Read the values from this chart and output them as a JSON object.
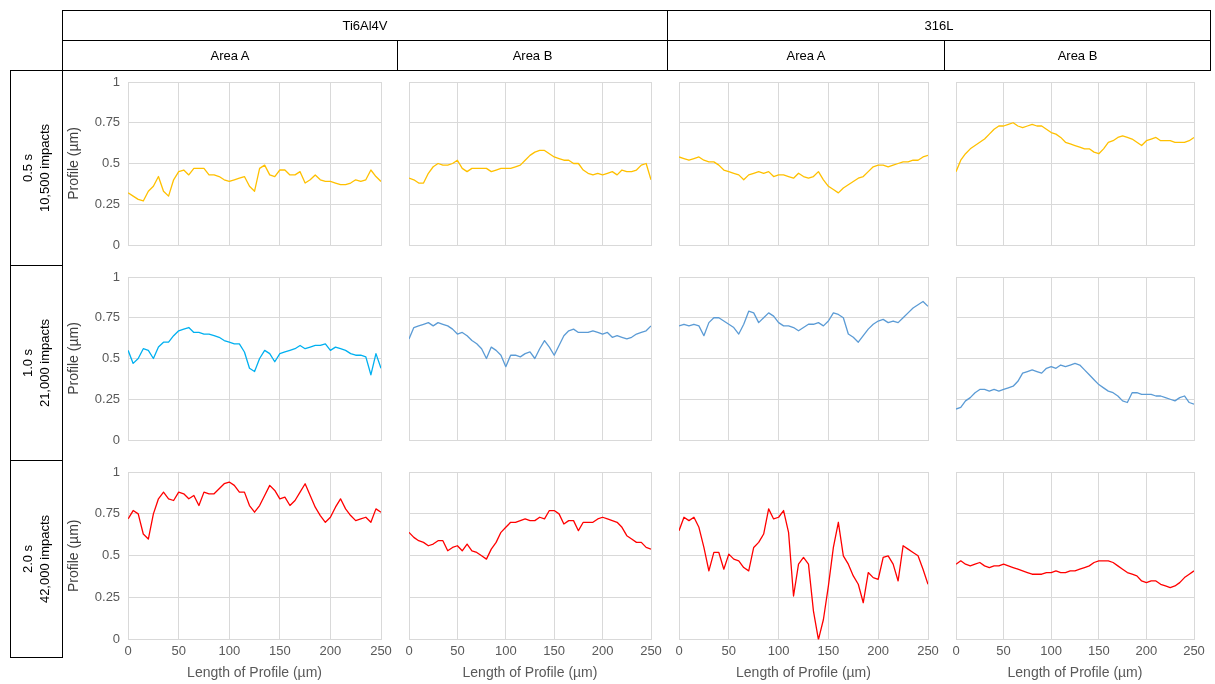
{
  "chart_data": [
    {
      "type": "other",
      "annotations": [
        "Ti6Al4V",
        "316L",
        "Area A",
        "Area B",
        "Area A",
        "Area B",
        "0.5 s",
        "10,500 impacts",
        "1.0 s",
        "21,000 impacts",
        "2.0 s",
        "42,000 impacts"
      ]
    },
    {
      "type": "line",
      "ylabel": "Profile (µm)",
      "tick_labels": "y",
      "grid": true,
      "color": "#ffc000",
      "xlim": [
        0,
        250
      ],
      "ylim": [
        0,
        1
      ],
      "xticks": [
        0,
        50,
        100,
        150,
        200,
        250
      ],
      "yticks": [
        0,
        0.25,
        0.5,
        0.75,
        1
      ],
      "x": [
        0,
        5,
        10,
        15,
        20,
        25,
        30,
        35,
        40,
        45,
        50,
        55,
        60,
        65,
        70,
        75,
        80,
        85,
        90,
        95,
        100,
        105,
        110,
        115,
        120,
        125,
        130,
        135,
        140,
        145,
        150,
        155,
        160,
        165,
        170,
        175,
        180,
        185,
        190,
        195,
        200,
        205,
        210,
        215,
        220,
        225,
        230,
        235,
        240,
        245,
        250
      ],
      "values": [
        0.32,
        0.3,
        0.28,
        0.27,
        0.33,
        0.36,
        0.42,
        0.33,
        0.3,
        0.4,
        0.45,
        0.46,
        0.43,
        0.47,
        0.47,
        0.47,
        0.43,
        0.43,
        0.42,
        0.4,
        0.39,
        0.4,
        0.41,
        0.42,
        0.36,
        0.33,
        0.47,
        0.49,
        0.43,
        0.42,
        0.46,
        0.46,
        0.43,
        0.43,
        0.45,
        0.38,
        0.4,
        0.43,
        0.4,
        0.39,
        0.39,
        0.38,
        0.37,
        0.37,
        0.38,
        0.4,
        0.39,
        0.4,
        0.46,
        0.42,
        0.39
      ]
    },
    {
      "type": "line",
      "tick_labels": false,
      "grid": true,
      "color": "#ffc000",
      "xlim": [
        0,
        250
      ],
      "ylim": [
        0,
        1
      ],
      "xticks": [
        0,
        50,
        100,
        150,
        200,
        250
      ],
      "yticks": [
        0,
        0.25,
        0.5,
        0.75,
        1
      ],
      "x": [
        0,
        5,
        10,
        15,
        20,
        25,
        30,
        35,
        40,
        45,
        50,
        55,
        60,
        65,
        70,
        75,
        80,
        85,
        90,
        95,
        100,
        105,
        110,
        115,
        120,
        125,
        130,
        135,
        140,
        145,
        150,
        155,
        160,
        165,
        170,
        175,
        180,
        185,
        190,
        195,
        200,
        205,
        210,
        215,
        220,
        225,
        230,
        235,
        240,
        245,
        250
      ],
      "values": [
        0.41,
        0.4,
        0.38,
        0.38,
        0.44,
        0.48,
        0.5,
        0.49,
        0.49,
        0.5,
        0.52,
        0.47,
        0.45,
        0.47,
        0.47,
        0.47,
        0.47,
        0.45,
        0.46,
        0.47,
        0.47,
        0.47,
        0.48,
        0.49,
        0.52,
        0.55,
        0.57,
        0.58,
        0.58,
        0.56,
        0.54,
        0.53,
        0.52,
        0.52,
        0.5,
        0.5,
        0.46,
        0.44,
        0.43,
        0.44,
        0.43,
        0.44,
        0.45,
        0.43,
        0.46,
        0.45,
        0.45,
        0.46,
        0.49,
        0.5,
        0.4
      ]
    },
    {
      "type": "line",
      "tick_labels": false,
      "grid": true,
      "color": "#ffc000",
      "xlim": [
        0,
        250
      ],
      "ylim": [
        0,
        1
      ],
      "xticks": [
        0,
        50,
        100,
        150,
        200,
        250
      ],
      "yticks": [
        0,
        0.25,
        0.5,
        0.75,
        1
      ],
      "x": [
        0,
        5,
        10,
        15,
        20,
        25,
        30,
        35,
        40,
        45,
        50,
        55,
        60,
        65,
        70,
        75,
        80,
        85,
        90,
        95,
        100,
        105,
        110,
        115,
        120,
        125,
        130,
        135,
        140,
        145,
        150,
        155,
        160,
        165,
        170,
        175,
        180,
        185,
        190,
        195,
        200,
        205,
        210,
        215,
        220,
        225,
        230,
        235,
        240,
        245,
        250
      ],
      "values": [
        0.54,
        0.53,
        0.52,
        0.53,
        0.54,
        0.52,
        0.51,
        0.51,
        0.49,
        0.46,
        0.45,
        0.44,
        0.43,
        0.4,
        0.43,
        0.44,
        0.45,
        0.44,
        0.45,
        0.42,
        0.43,
        0.43,
        0.42,
        0.41,
        0.44,
        0.42,
        0.41,
        0.42,
        0.45,
        0.4,
        0.36,
        0.34,
        0.32,
        0.35,
        0.37,
        0.39,
        0.41,
        0.42,
        0.45,
        0.48,
        0.49,
        0.49,
        0.48,
        0.49,
        0.5,
        0.51,
        0.51,
        0.52,
        0.52,
        0.54,
        0.55
      ]
    },
    {
      "type": "line",
      "tick_labels": false,
      "grid": true,
      "color": "#ffc000",
      "xlim": [
        0,
        250
      ],
      "ylim": [
        0,
        1
      ],
      "xticks": [
        0,
        50,
        100,
        150,
        200,
        250
      ],
      "yticks": [
        0,
        0.25,
        0.5,
        0.75,
        1
      ],
      "x": [
        0,
        5,
        10,
        15,
        20,
        25,
        30,
        35,
        40,
        45,
        50,
        55,
        60,
        65,
        70,
        75,
        80,
        85,
        90,
        95,
        100,
        105,
        110,
        115,
        120,
        125,
        130,
        135,
        140,
        145,
        150,
        155,
        160,
        165,
        170,
        175,
        180,
        185,
        190,
        195,
        200,
        205,
        210,
        215,
        220,
        225,
        230,
        235,
        240,
        245,
        250
      ],
      "values": [
        0.45,
        0.52,
        0.56,
        0.59,
        0.61,
        0.63,
        0.65,
        0.68,
        0.71,
        0.73,
        0.73,
        0.74,
        0.75,
        0.73,
        0.72,
        0.73,
        0.74,
        0.73,
        0.73,
        0.71,
        0.69,
        0.68,
        0.66,
        0.63,
        0.62,
        0.61,
        0.6,
        0.59,
        0.59,
        0.57,
        0.56,
        0.59,
        0.63,
        0.64,
        0.66,
        0.67,
        0.66,
        0.65,
        0.63,
        0.61,
        0.64,
        0.65,
        0.66,
        0.64,
        0.64,
        0.64,
        0.63,
        0.63,
        0.63,
        0.64,
        0.66
      ]
    },
    {
      "type": "line",
      "ylabel": "Profile (µm)",
      "tick_labels": "y",
      "grid": true,
      "color": "#00b0f0",
      "xlim": [
        0,
        250
      ],
      "ylim": [
        0,
        1
      ],
      "xticks": [
        0,
        50,
        100,
        150,
        200,
        250
      ],
      "yticks": [
        0,
        0.25,
        0.5,
        0.75,
        1
      ],
      "x": [
        0,
        5,
        10,
        15,
        20,
        25,
        30,
        35,
        40,
        45,
        50,
        55,
        60,
        65,
        70,
        75,
        80,
        85,
        90,
        95,
        100,
        105,
        110,
        115,
        120,
        125,
        130,
        135,
        140,
        145,
        150,
        155,
        160,
        165,
        170,
        175,
        180,
        185,
        190,
        195,
        200,
        205,
        210,
        215,
        220,
        225,
        230,
        235,
        240,
        245,
        250
      ],
      "values": [
        0.55,
        0.47,
        0.5,
        0.56,
        0.55,
        0.5,
        0.57,
        0.6,
        0.6,
        0.64,
        0.67,
        0.68,
        0.69,
        0.66,
        0.66,
        0.65,
        0.65,
        0.64,
        0.63,
        0.61,
        0.6,
        0.59,
        0.59,
        0.54,
        0.44,
        0.42,
        0.5,
        0.55,
        0.53,
        0.48,
        0.53,
        0.54,
        0.55,
        0.56,
        0.58,
        0.56,
        0.57,
        0.58,
        0.58,
        0.59,
        0.55,
        0.57,
        0.56,
        0.55,
        0.53,
        0.52,
        0.52,
        0.51,
        0.4,
        0.53,
        0.44
      ]
    },
    {
      "type": "line",
      "tick_labels": false,
      "grid": true,
      "color": "#5b9bd5",
      "xlim": [
        0,
        250
      ],
      "ylim": [
        0,
        1
      ],
      "xticks": [
        0,
        50,
        100,
        150,
        200,
        250
      ],
      "yticks": [
        0,
        0.25,
        0.5,
        0.75,
        1
      ],
      "x": [
        0,
        5,
        10,
        15,
        20,
        25,
        30,
        35,
        40,
        45,
        50,
        55,
        60,
        65,
        70,
        75,
        80,
        85,
        90,
        95,
        100,
        105,
        110,
        115,
        120,
        125,
        130,
        135,
        140,
        145,
        150,
        155,
        160,
        165,
        170,
        175,
        180,
        185,
        190,
        195,
        200,
        205,
        210,
        215,
        220,
        225,
        230,
        235,
        240,
        245,
        250
      ],
      "values": [
        0.62,
        0.69,
        0.7,
        0.71,
        0.72,
        0.7,
        0.72,
        0.71,
        0.7,
        0.68,
        0.65,
        0.66,
        0.64,
        0.61,
        0.59,
        0.56,
        0.5,
        0.57,
        0.55,
        0.52,
        0.45,
        0.52,
        0.52,
        0.51,
        0.53,
        0.54,
        0.5,
        0.56,
        0.61,
        0.57,
        0.52,
        0.58,
        0.64,
        0.67,
        0.68,
        0.66,
        0.66,
        0.66,
        0.67,
        0.66,
        0.65,
        0.66,
        0.63,
        0.64,
        0.63,
        0.62,
        0.63,
        0.65,
        0.66,
        0.67,
        0.7
      ]
    },
    {
      "type": "line",
      "tick_labels": false,
      "grid": true,
      "color": "#5b9bd5",
      "xlim": [
        0,
        250
      ],
      "ylim": [
        0,
        1
      ],
      "xticks": [
        0,
        50,
        100,
        150,
        200,
        250
      ],
      "yticks": [
        0,
        0.25,
        0.5,
        0.75,
        1
      ],
      "x": [
        0,
        5,
        10,
        15,
        20,
        25,
        30,
        35,
        40,
        45,
        50,
        55,
        60,
        65,
        70,
        75,
        80,
        85,
        90,
        95,
        100,
        105,
        110,
        115,
        120,
        125,
        130,
        135,
        140,
        145,
        150,
        155,
        160,
        165,
        170,
        175,
        180,
        185,
        190,
        195,
        200,
        205,
        210,
        215,
        220,
        225,
        230,
        235,
        240,
        245,
        250
      ],
      "values": [
        0.7,
        0.71,
        0.7,
        0.71,
        0.7,
        0.64,
        0.72,
        0.75,
        0.75,
        0.73,
        0.71,
        0.69,
        0.65,
        0.71,
        0.79,
        0.78,
        0.72,
        0.75,
        0.78,
        0.76,
        0.72,
        0.7,
        0.7,
        0.69,
        0.67,
        0.69,
        0.71,
        0.71,
        0.72,
        0.7,
        0.73,
        0.78,
        0.77,
        0.75,
        0.65,
        0.63,
        0.6,
        0.64,
        0.68,
        0.71,
        0.73,
        0.74,
        0.72,
        0.73,
        0.72,
        0.75,
        0.78,
        0.81,
        0.83,
        0.85,
        0.82
      ]
    },
    {
      "type": "line",
      "tick_labels": false,
      "grid": true,
      "color": "#5b9bd5",
      "xlim": [
        0,
        250
      ],
      "ylim": [
        0,
        1
      ],
      "xticks": [
        0,
        50,
        100,
        150,
        200,
        250
      ],
      "yticks": [
        0,
        0.25,
        0.5,
        0.75,
        1
      ],
      "x": [
        0,
        5,
        10,
        15,
        20,
        25,
        30,
        35,
        40,
        45,
        50,
        55,
        60,
        65,
        70,
        75,
        80,
        85,
        90,
        95,
        100,
        105,
        110,
        115,
        120,
        125,
        130,
        135,
        140,
        145,
        150,
        155,
        160,
        165,
        170,
        175,
        180,
        185,
        190,
        195,
        200,
        205,
        210,
        215,
        220,
        225,
        230,
        235,
        240,
        245,
        250
      ],
      "values": [
        0.19,
        0.2,
        0.24,
        0.26,
        0.29,
        0.31,
        0.31,
        0.3,
        0.31,
        0.3,
        0.31,
        0.32,
        0.33,
        0.36,
        0.41,
        0.42,
        0.43,
        0.42,
        0.41,
        0.44,
        0.45,
        0.44,
        0.46,
        0.45,
        0.46,
        0.47,
        0.46,
        0.43,
        0.4,
        0.37,
        0.34,
        0.32,
        0.3,
        0.29,
        0.27,
        0.24,
        0.23,
        0.29,
        0.29,
        0.28,
        0.28,
        0.28,
        0.27,
        0.27,
        0.26,
        0.25,
        0.24,
        0.26,
        0.27,
        0.23,
        0.22
      ]
    },
    {
      "type": "line",
      "ylabel": "Profile (µm)",
      "xlabel": "Length of Profile (µm)",
      "grid": true,
      "color": "#ff0000",
      "xlim": [
        0,
        250
      ],
      "ylim": [
        0,
        1
      ],
      "xticks": [
        0,
        50,
        100,
        150,
        200,
        250
      ],
      "yticks": [
        0,
        0.25,
        0.5,
        0.75,
        1
      ],
      "x": [
        0,
        5,
        10,
        15,
        20,
        25,
        30,
        35,
        40,
        45,
        50,
        55,
        60,
        65,
        70,
        75,
        80,
        85,
        90,
        95,
        100,
        105,
        110,
        115,
        120,
        125,
        130,
        135,
        140,
        145,
        150,
        155,
        160,
        165,
        170,
        175,
        180,
        185,
        190,
        195,
        200,
        205,
        210,
        215,
        220,
        225,
        230,
        235,
        240,
        245,
        250
      ],
      "values": [
        0.72,
        0.77,
        0.75,
        0.63,
        0.6,
        0.75,
        0.84,
        0.88,
        0.84,
        0.83,
        0.88,
        0.87,
        0.84,
        0.86,
        0.8,
        0.88,
        0.87,
        0.87,
        0.9,
        0.93,
        0.94,
        0.92,
        0.88,
        0.88,
        0.8,
        0.76,
        0.8,
        0.86,
        0.92,
        0.89,
        0.84,
        0.85,
        0.8,
        0.83,
        0.88,
        0.93,
        0.86,
        0.79,
        0.74,
        0.7,
        0.73,
        0.79,
        0.84,
        0.78,
        0.74,
        0.71,
        0.72,
        0.73,
        0.7,
        0.78,
        0.76
      ]
    },
    {
      "type": "line",
      "xlabel": "Length of Profile (µm)",
      "tick_labels": "x",
      "grid": true,
      "color": "#ff0000",
      "xlim": [
        0,
        250
      ],
      "ylim": [
        0,
        1
      ],
      "xticks": [
        0,
        50,
        100,
        150,
        200,
        250
      ],
      "yticks": [
        0,
        0.25,
        0.5,
        0.75,
        1
      ],
      "x": [
        0,
        5,
        10,
        15,
        20,
        25,
        30,
        35,
        40,
        45,
        50,
        55,
        60,
        65,
        70,
        75,
        80,
        85,
        90,
        95,
        100,
        105,
        110,
        115,
        120,
        125,
        130,
        135,
        140,
        145,
        150,
        155,
        160,
        165,
        170,
        175,
        180,
        185,
        190,
        195,
        200,
        205,
        210,
        215,
        220,
        225,
        230,
        235,
        240,
        245,
        250
      ],
      "values": [
        0.64,
        0.61,
        0.59,
        0.58,
        0.56,
        0.57,
        0.59,
        0.59,
        0.53,
        0.55,
        0.56,
        0.53,
        0.57,
        0.53,
        0.52,
        0.5,
        0.48,
        0.54,
        0.58,
        0.64,
        0.67,
        0.7,
        0.7,
        0.71,
        0.72,
        0.71,
        0.71,
        0.73,
        0.72,
        0.77,
        0.77,
        0.75,
        0.69,
        0.71,
        0.71,
        0.65,
        0.7,
        0.7,
        0.7,
        0.72,
        0.73,
        0.72,
        0.71,
        0.7,
        0.67,
        0.62,
        0.6,
        0.58,
        0.58,
        0.55,
        0.54
      ]
    },
    {
      "type": "line",
      "xlabel": "Length of Profile (µm)",
      "tick_labels": "x",
      "grid": true,
      "color": "#ff0000",
      "xlim": [
        0,
        250
      ],
      "ylim": [
        0,
        1
      ],
      "xticks": [
        0,
        50,
        100,
        150,
        200,
        250
      ],
      "yticks": [
        0,
        0.25,
        0.5,
        0.75,
        1
      ],
      "x": [
        0,
        5,
        10,
        15,
        20,
        25,
        30,
        35,
        40,
        45,
        50,
        55,
        60,
        65,
        70,
        75,
        80,
        85,
        90,
        95,
        100,
        105,
        110,
        115,
        120,
        125,
        130,
        135,
        140,
        145,
        150,
        155,
        160,
        165,
        170,
        175,
        180,
        185,
        190,
        195,
        200,
        205,
        210,
        215,
        220,
        225,
        230,
        235,
        240,
        245,
        250
      ],
      "values": [
        0.65,
        0.73,
        0.71,
        0.73,
        0.67,
        0.55,
        0.41,
        0.52,
        0.52,
        0.42,
        0.51,
        0.48,
        0.47,
        0.43,
        0.41,
        0.55,
        0.58,
        0.63,
        0.78,
        0.72,
        0.73,
        0.77,
        0.64,
        0.26,
        0.45,
        0.49,
        0.45,
        0.17,
        0.0,
        0.12,
        0.32,
        0.55,
        0.7,
        0.5,
        0.45,
        0.38,
        0.33,
        0.22,
        0.4,
        0.37,
        0.36,
        0.49,
        0.5,
        0.45,
        0.35,
        0.56,
        0.54,
        0.52,
        0.5,
        0.42,
        0.33
      ]
    },
    {
      "type": "line",
      "xlabel": "Length of Profile (µm)",
      "tick_labels": "x",
      "grid": true,
      "color": "#ff0000",
      "xlim": [
        0,
        250
      ],
      "ylim": [
        0,
        1
      ],
      "xticks": [
        0,
        50,
        100,
        150,
        200,
        250
      ],
      "yticks": [
        0,
        0.25,
        0.5,
        0.75,
        1
      ],
      "x": [
        0,
        5,
        10,
        15,
        20,
        25,
        30,
        35,
        40,
        45,
        50,
        55,
        60,
        65,
        70,
        75,
        80,
        85,
        90,
        95,
        100,
        105,
        110,
        115,
        120,
        125,
        130,
        135,
        140,
        145,
        150,
        155,
        160,
        165,
        170,
        175,
        180,
        185,
        190,
        195,
        200,
        205,
        210,
        215,
        220,
        225,
        230,
        235,
        240,
        245,
        250
      ],
      "values": [
        0.45,
        0.47,
        0.45,
        0.44,
        0.45,
        0.46,
        0.44,
        0.43,
        0.44,
        0.44,
        0.45,
        0.44,
        0.43,
        0.42,
        0.41,
        0.4,
        0.39,
        0.39,
        0.39,
        0.4,
        0.4,
        0.41,
        0.4,
        0.4,
        0.41,
        0.41,
        0.42,
        0.43,
        0.44,
        0.46,
        0.47,
        0.47,
        0.47,
        0.46,
        0.44,
        0.42,
        0.4,
        0.39,
        0.38,
        0.35,
        0.34,
        0.35,
        0.35,
        0.33,
        0.32,
        0.31,
        0.32,
        0.34,
        0.37,
        0.39,
        0.41
      ]
    }
  ]
}
